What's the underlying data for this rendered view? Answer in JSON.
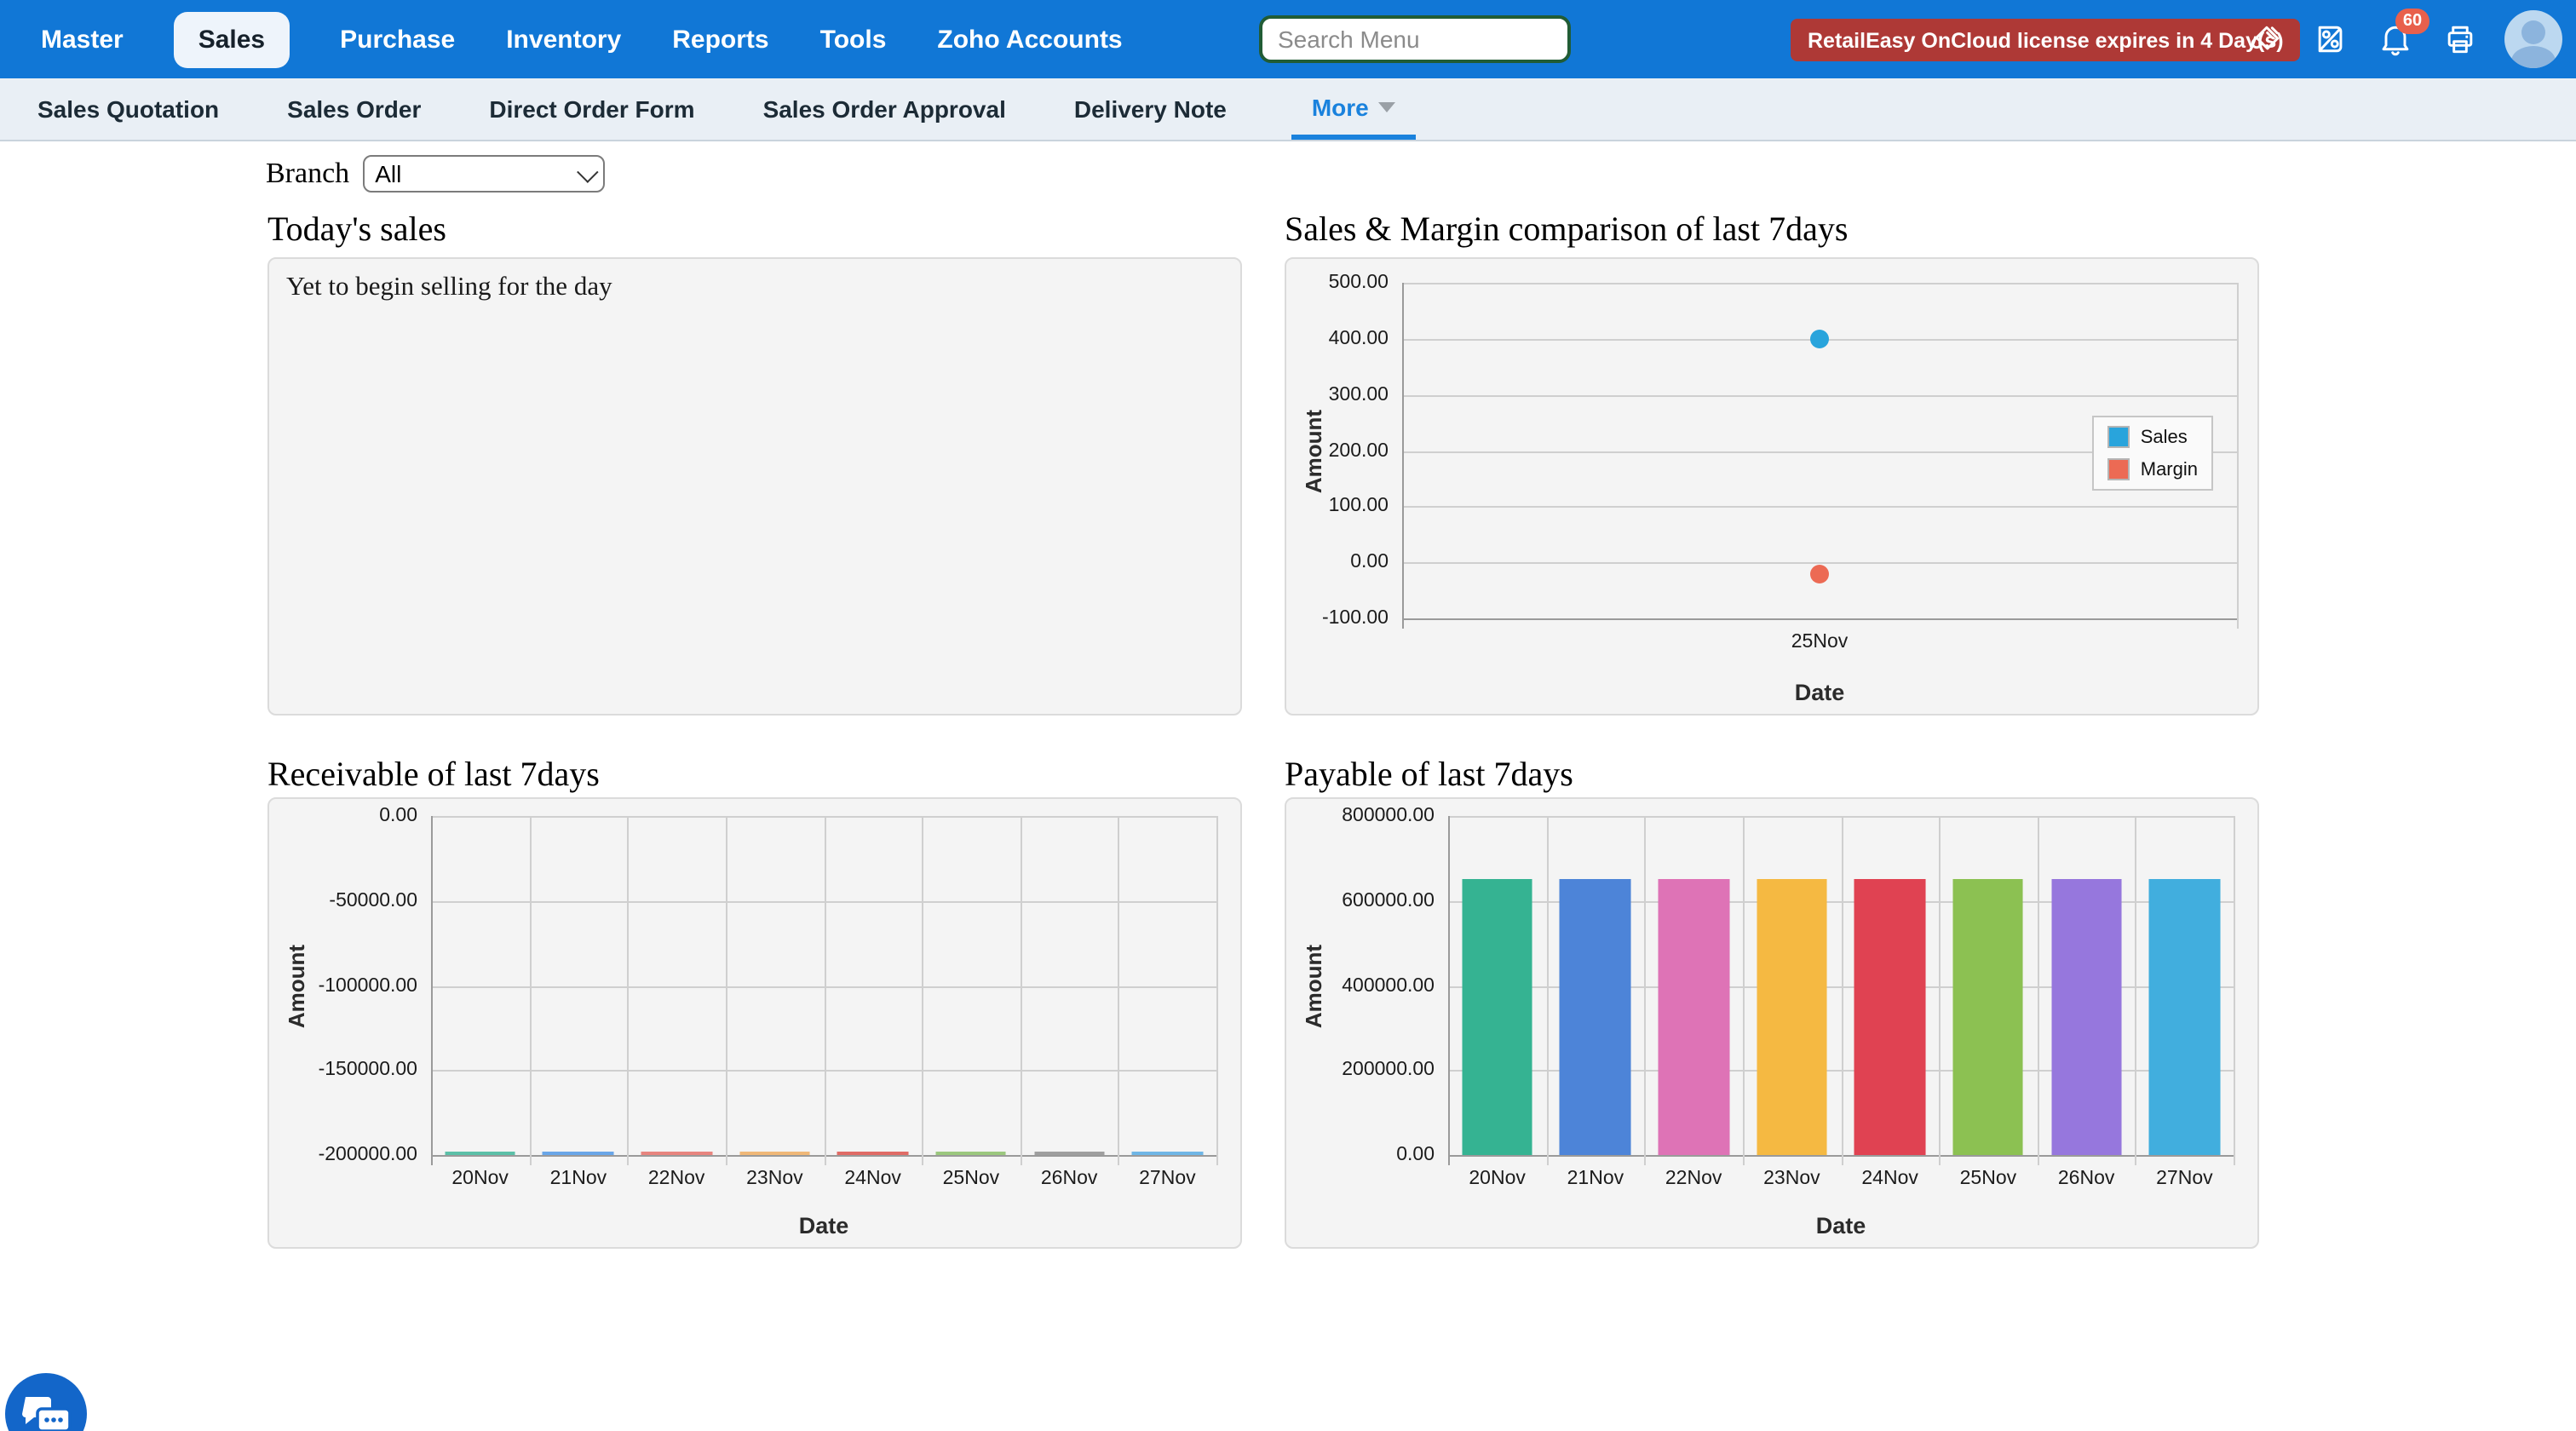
{
  "topnav": {
    "items": [
      "Master",
      "Sales",
      "Purchase",
      "Inventory",
      "Reports",
      "Tools",
      "Zoho Accounts"
    ],
    "active": "Sales",
    "search_placeholder": "Search Menu",
    "license_warning": "RetailEasy OnCloud license expires in 4 Day(s)",
    "notification_count": "60",
    "icons": [
      "paintbrush-icon",
      "zoho-books-icon",
      "bell-icon",
      "printer-icon",
      "avatar"
    ]
  },
  "subnav": {
    "items": [
      "Sales Quotation",
      "Sales Order",
      "Direct Order Form",
      "Sales Order Approval",
      "Delivery Note",
      "More"
    ],
    "active": "More"
  },
  "filters": {
    "branch_label": "Branch",
    "branch_value": "All"
  },
  "panels": {
    "today_sales": {
      "title": "Today's sales",
      "message": "Yet to begin selling for the day"
    }
  },
  "colors": {
    "nav_blue": "#1177d6",
    "active_link_blue": "#1a82dd",
    "license_red": "#ae3936",
    "badge_red": "#e8604c"
  },
  "chart_data": [
    {
      "type": "scatter",
      "title": "Sales & Margin comparison of last 7days",
      "xlabel": "Date",
      "ylabel": "Amount",
      "categories": [
        "25Nov"
      ],
      "series": [
        {
          "name": "Sales",
          "color": "#29a4dc",
          "values": [
            400
          ]
        },
        {
          "name": "Margin",
          "color": "#ec6a54",
          "values": [
            -20
          ]
        }
      ],
      "y_ticks": [
        500,
        400,
        300,
        200,
        100,
        0,
        -100
      ],
      "ylim": [
        -100,
        500
      ],
      "grid": true,
      "legend_position": "right-inside"
    },
    {
      "type": "bar",
      "title": "Receivable of last 7days",
      "xlabel": "Date",
      "ylabel": "Amount",
      "categories": [
        "20Nov",
        "21Nov",
        "22Nov",
        "23Nov",
        "24Nov",
        "25Nov",
        "26Nov",
        "27Nov"
      ],
      "values": [
        -199000,
        -199000,
        -199000,
        -199000,
        -199000,
        -199000,
        -199000,
        -199000
      ],
      "colors": [
        "#a8d8cb",
        "#9dc3ee",
        "#f2b0ac",
        "#f8d4ae",
        "#efa09d",
        "#c3dfae",
        "#c9c9c9",
        "#a6d4ef"
      ],
      "edge_colors": [
        "#5cc0a8",
        "#6aa6e8",
        "#e8857f",
        "#f0b878",
        "#e06c66",
        "#9cc87e",
        "#9f9f9f",
        "#6fb6e6"
      ],
      "y_ticks": [
        0,
        -50000,
        -100000,
        -150000,
        -200000
      ],
      "ylim": [
        -200000,
        0
      ],
      "grid": true,
      "legend_position": "none"
    },
    {
      "type": "bar",
      "title": "Payable of last 7days",
      "xlabel": "Date",
      "ylabel": "Amount",
      "categories": [
        "20Nov",
        "21Nov",
        "22Nov",
        "23Nov",
        "24Nov",
        "25Nov",
        "26Nov",
        "27Nov"
      ],
      "values": [
        650000,
        650000,
        650000,
        650000,
        650000,
        650000,
        650000,
        650000
      ],
      "colors": [
        "#35b392",
        "#4d84d8",
        "#de73b6",
        "#f5b942",
        "#e04252",
        "#8cc152",
        "#9677dd",
        "#41aede"
      ],
      "edge_colors": [
        "#35b392",
        "#4d84d8",
        "#de73b6",
        "#f5b942",
        "#e04252",
        "#8cc152",
        "#9677dd",
        "#41aede"
      ],
      "y_ticks": [
        800000,
        600000,
        400000,
        200000,
        0
      ],
      "ylim": [
        0,
        800000
      ],
      "grid": true,
      "legend_position": "none"
    }
  ]
}
